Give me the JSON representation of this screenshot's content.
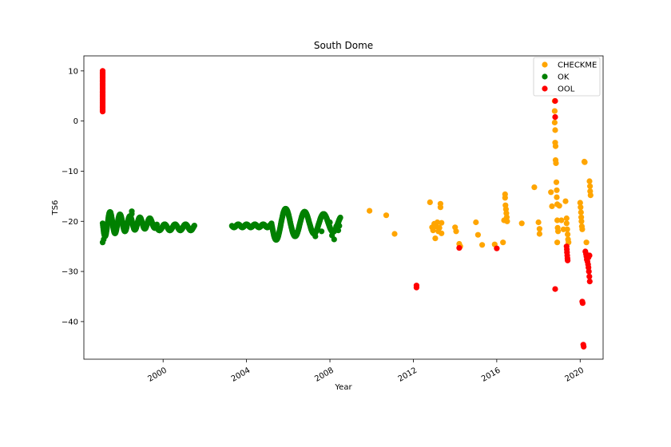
{
  "chart_data": {
    "type": "scatter",
    "title": "South Dome",
    "xlabel": "Year",
    "ylabel": "TS6",
    "xlim": [
      1996.2,
      2021.1
    ],
    "ylim": [
      -47.5,
      13.0
    ],
    "x_ticks": [
      2000,
      2004,
      2008,
      2012,
      2016,
      2020
    ],
    "y_ticks": [
      10,
      0,
      -10,
      -20,
      -30,
      -40
    ],
    "grid": false,
    "legend_position": "top-right",
    "series": [
      {
        "name": "CHECKME",
        "color": "#FFA500",
        "points": [
          [
            2009.9,
            -17.9
          ],
          [
            2010.7,
            -18.8
          ],
          [
            2011.1,
            -22.5
          ],
          [
            2012.8,
            -16.2
          ],
          [
            2012.9,
            -21.2
          ],
          [
            2012.95,
            -21.8
          ],
          [
            2013.0,
            -20.5
          ],
          [
            2013.05,
            -23.4
          ],
          [
            2013.1,
            -21.0
          ],
          [
            2013.15,
            -20.2
          ],
          [
            2013.2,
            -22.0
          ],
          [
            2013.25,
            -21.3
          ],
          [
            2013.3,
            -16.5
          ],
          [
            2013.3,
            -17.2
          ],
          [
            2013.35,
            -20.3
          ],
          [
            2013.35,
            -22.4
          ],
          [
            2014.0,
            -21.2
          ],
          [
            2014.05,
            -22.0
          ],
          [
            2014.2,
            -24.5
          ],
          [
            2014.25,
            -25.0
          ],
          [
            2015.0,
            -20.2
          ],
          [
            2015.1,
            -22.7
          ],
          [
            2015.3,
            -24.7
          ],
          [
            2015.9,
            -24.6
          ],
          [
            2016.3,
            -24.2
          ],
          [
            2016.35,
            -19.8
          ],
          [
            2016.4,
            -14.6
          ],
          [
            2016.4,
            -15.3
          ],
          [
            2016.42,
            -16.8
          ],
          [
            2016.44,
            -17.6
          ],
          [
            2016.46,
            -18.4
          ],
          [
            2016.48,
            -19.2
          ],
          [
            2016.5,
            -20.0
          ],
          [
            2017.2,
            -20.4
          ],
          [
            2017.8,
            -13.2
          ],
          [
            2018.0,
            -20.2
          ],
          [
            2018.05,
            -21.5
          ],
          [
            2018.05,
            -22.5
          ],
          [
            2018.6,
            -14.2
          ],
          [
            2018.65,
            -17.0
          ],
          [
            2018.78,
            4.0
          ],
          [
            2018.78,
            2.0
          ],
          [
            2018.78,
            -0.3
          ],
          [
            2018.8,
            -1.8
          ],
          [
            2018.8,
            -4.3
          ],
          [
            2018.82,
            -5.0
          ],
          [
            2018.82,
            -7.8
          ],
          [
            2018.84,
            -8.4
          ],
          [
            2018.86,
            -12.2
          ],
          [
            2018.88,
            -13.8
          ],
          [
            2018.88,
            -15.2
          ],
          [
            2018.9,
            -16.6
          ],
          [
            2018.9,
            -19.8
          ],
          [
            2018.92,
            -21.3
          ],
          [
            2018.94,
            -22.0
          ],
          [
            2018.9,
            -24.2
          ],
          [
            2019.0,
            -16.9
          ],
          [
            2019.1,
            -19.8
          ],
          [
            2019.2,
            -21.6
          ],
          [
            2019.3,
            -16.0
          ],
          [
            2019.35,
            -19.4
          ],
          [
            2019.35,
            -20.4
          ],
          [
            2019.38,
            -21.6
          ],
          [
            2019.4,
            -22.6
          ],
          [
            2019.42,
            -23.6
          ],
          [
            2019.44,
            -24.2
          ],
          [
            2020.0,
            -16.3
          ],
          [
            2020.02,
            -17.2
          ],
          [
            2020.04,
            -18.2
          ],
          [
            2020.05,
            -19.2
          ],
          [
            2020.06,
            -20.0
          ],
          [
            2020.08,
            -21.0
          ],
          [
            2020.1,
            -21.6
          ],
          [
            2020.2,
            -8.1
          ],
          [
            2020.22,
            -8.2
          ],
          [
            2020.3,
            -24.2
          ],
          [
            2020.45,
            -12.0
          ],
          [
            2020.47,
            -13.0
          ],
          [
            2020.48,
            -14.0
          ],
          [
            2020.5,
            -14.8
          ]
        ]
      },
      {
        "name": "OK",
        "color": "#008000",
        "points": []
      },
      {
        "name": "OOL",
        "color": "#FF0000",
        "points": [
          [
            2012.15,
            -32.8
          ],
          [
            2012.15,
            -33.2
          ],
          [
            2014.2,
            -25.3
          ],
          [
            2016.0,
            -25.4
          ],
          [
            2018.8,
            4.0
          ],
          [
            2018.8,
            0.8
          ],
          [
            2018.8,
            -33.5
          ],
          [
            2019.35,
            -25.0
          ],
          [
            2019.36,
            -25.6
          ],
          [
            2019.37,
            -26.2
          ],
          [
            2019.38,
            -26.8
          ],
          [
            2019.39,
            -27.4
          ],
          [
            2019.4,
            -27.8
          ],
          [
            2020.1,
            -36.0
          ],
          [
            2020.12,
            -36.3
          ],
          [
            2020.15,
            -44.6
          ],
          [
            2020.17,
            -45.0
          ],
          [
            2020.25,
            -26.0
          ],
          [
            2020.28,
            -26.5
          ],
          [
            2020.3,
            -27.0
          ],
          [
            2020.32,
            -27.6
          ],
          [
            2020.35,
            -28.0
          ],
          [
            2020.38,
            -28.6
          ],
          [
            2020.4,
            -29.2
          ],
          [
            2020.42,
            -30.0
          ],
          [
            2020.44,
            -31.0
          ],
          [
            2020.46,
            -32.0
          ],
          [
            2020.45,
            -26.8
          ],
          [
            2020.4,
            -27.2
          ]
        ]
      }
    ],
    "ok_segments": [
      {
        "x_start": 1997.1,
        "x_end": 1999.7,
        "base": -20.4,
        "amp": 2.2,
        "freq": 2.1,
        "decay": 0.7
      },
      {
        "x_start": 1999.7,
        "x_end": 2001.5,
        "base": -21.2,
        "amp": 0.6,
        "freq": 2.0,
        "decay": 0.0
      },
      {
        "x_start": 2003.3,
        "x_end": 2005.2,
        "base": -20.9,
        "amp": 0.3,
        "freq": 2.5,
        "decay": 0.0
      },
      {
        "x_start": 2005.2,
        "x_end": 2008.5,
        "base": -20.4,
        "amp": 2.8,
        "freq": 1.1,
        "decay": 0.35
      }
    ],
    "ok_extra_points": [
      [
        1998.5,
        -18.0
      ],
      [
        1998.5,
        -18.5
      ],
      [
        1997.1,
        -24.2
      ],
      [
        1997.15,
        -23.6
      ],
      [
        2007.3,
        -23.0
      ],
      [
        2007.6,
        -22.0
      ],
      [
        2008.0,
        -20.2
      ],
      [
        2008.1,
        -22.8
      ],
      [
        2008.2,
        -23.6
      ],
      [
        2008.3,
        -21.0
      ],
      [
        2008.4,
        -21.8
      ],
      [
        2008.45,
        -20.9
      ]
    ],
    "ool_vertical_start": {
      "x": 1997.1,
      "y_from": 1.9,
      "y_to": 10.0
    }
  }
}
